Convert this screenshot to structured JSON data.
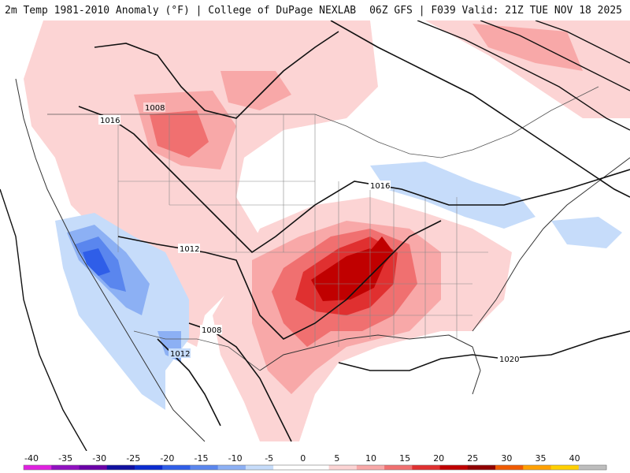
{
  "header": {
    "title_left": "2m Temp 1981-2010 Anomaly (°F) | College of DuPage NEXLAB",
    "title_right": "06Z GFS | F039 Valid: 21Z TUE NOV 18 2025"
  },
  "legend": {
    "ticks": [
      "-40",
      "-35",
      "-30",
      "-25",
      "-20",
      "-15",
      "-10",
      "-5",
      "0",
      "5",
      "10",
      "15",
      "20",
      "25",
      "30",
      "35",
      "40"
    ],
    "colors": [
      "#e020e0",
      "#9010c0",
      "#6a00a8",
      "#1010a0",
      "#0a2bd0",
      "#2f5ee8",
      "#5a86ee",
      "#8cb0f4",
      "#c6dcfa",
      "#ffffff",
      "#ffffff",
      "#fcd4d4",
      "#f8a8a8",
      "#f07070",
      "#e03030",
      "#c00000",
      "#900000",
      "#f05a00",
      "#ffa000",
      "#ffd000",
      "#bdbdbd"
    ]
  },
  "map": {
    "anomaly_fill_colors": {
      "light_warm": "#fcd4d4",
      "warm": "#f8a8a8",
      "hot": "#f07070",
      "very_hot": "#e03030",
      "extreme": "#c00000",
      "light_cool": "#c6dcfa",
      "cool": "#8cb0f4",
      "cold": "#5a86ee",
      "very_cold": "#2f5ee8"
    },
    "isobar_labels": [
      "1008",
      "1016",
      "1012",
      "1008",
      "1012",
      "1016",
      "1020"
    ]
  }
}
